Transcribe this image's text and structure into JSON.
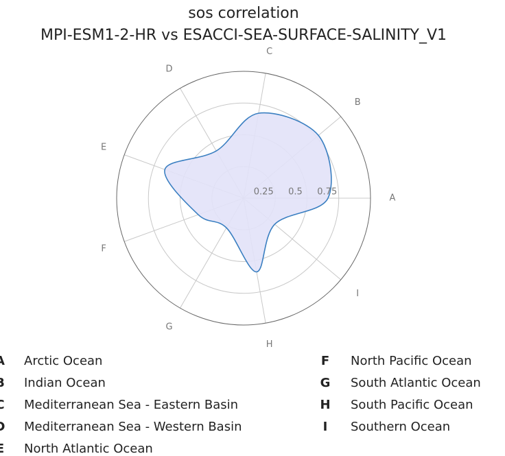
{
  "chart_data": {
    "type": "radar",
    "title": "sos correlation",
    "subtitle": "MPI-ESM1-2-HR vs ESACCI-SEA-SURFACE-SALINITY_V1",
    "categories": [
      "A",
      "B",
      "C",
      "D",
      "E",
      "F",
      "G",
      "H",
      "I"
    ],
    "values": [
      0.665,
      0.77,
      0.68,
      0.43,
      0.66,
      0.38,
      0.27,
      0.59,
      0.32
    ],
    "color": "#3a7fc1",
    "fill": "#e2e2f8",
    "rlim": [
      0,
      1
    ],
    "rticks": [
      0.25,
      0.5,
      0.75
    ],
    "grid": true,
    "legend": [
      "Arctic Ocean",
      "Indian Ocean",
      "Mediterranean Sea - Eastern Basin",
      "Mediterranean Sea - Western Basin",
      "North Atlantic Ocean",
      "North Pacific Ocean",
      "South Atlantic Ocean",
      "South Pacific Ocean",
      "Southern Ocean"
    ]
  }
}
